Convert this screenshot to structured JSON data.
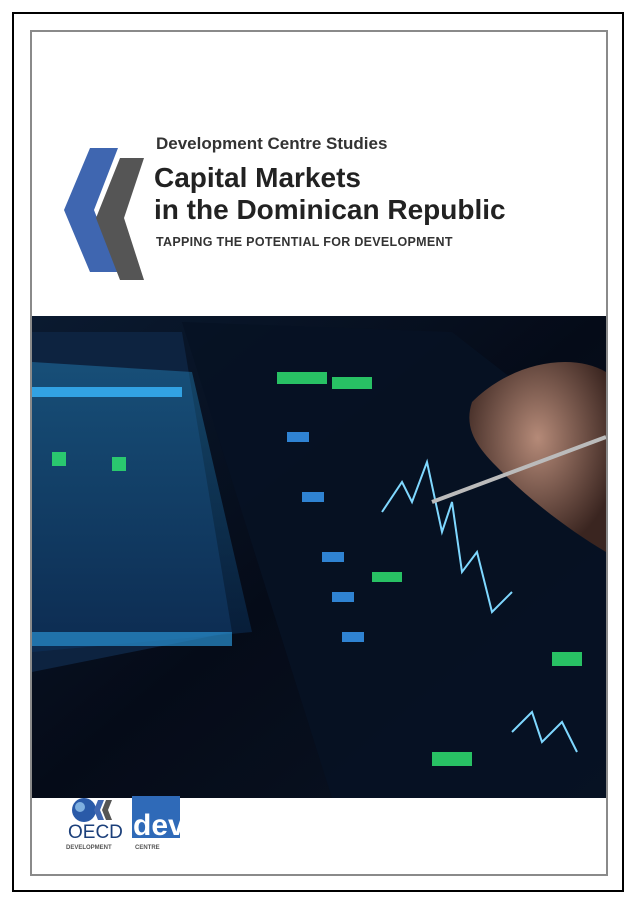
{
  "header": {
    "series": "Development Centre Studies",
    "title_lines": [
      "Capital Markets",
      "in the Dominican Republic"
    ],
    "subtitle": "TAPPING THE POTENTIAL FOR DEVELOPMENT"
  },
  "footer": {
    "oecd": "OECD",
    "dev": "dev",
    "oecd_caption": "DEVELOPMENT",
    "dev_caption": "CENTRE"
  }
}
